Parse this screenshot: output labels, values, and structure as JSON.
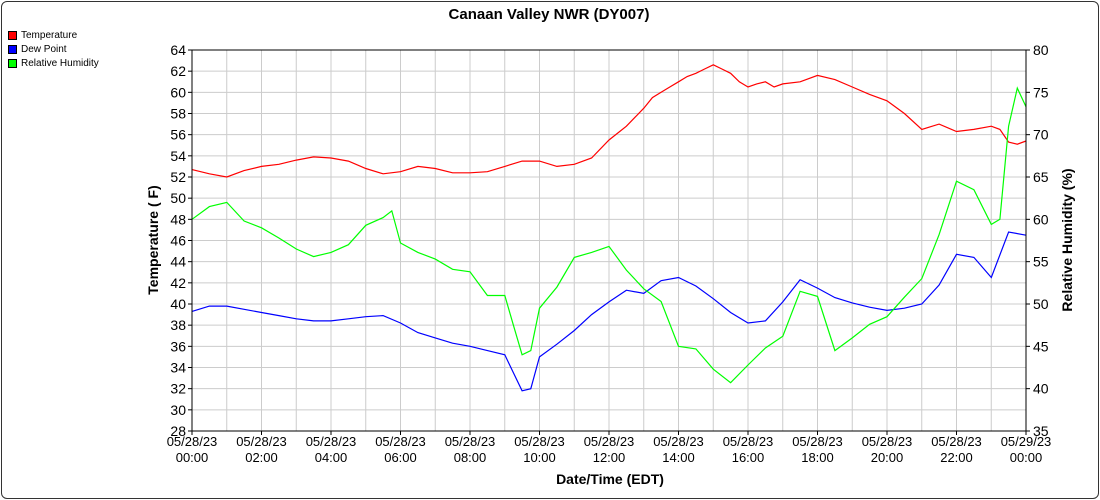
{
  "chart_data": {
    "type": "line",
    "title": "Canaan Valley NWR (DY007)",
    "xlabel": "Date/Time (EDT)",
    "ylabel": "Temperature ( F)",
    "y2label": "Relative Humidity (%)",
    "xlim": [
      0,
      24
    ],
    "ylim": [
      28,
      64
    ],
    "y2lim": [
      35,
      80
    ],
    "yticks": [
      "28",
      "30",
      "32",
      "34",
      "36",
      "38",
      "40",
      "42",
      "44",
      "46",
      "48",
      "50",
      "52",
      "54",
      "56",
      "58",
      "60",
      "62",
      "64"
    ],
    "y2ticks": [
      "35",
      "40",
      "45",
      "50",
      "55",
      "60",
      "65",
      "70",
      "75",
      "80"
    ],
    "xticks": [
      {
        "date": "05/28/23",
        "time": "00:00"
      },
      {
        "date": "05/28/23",
        "time": "02:00"
      },
      {
        "date": "05/28/23",
        "time": "04:00"
      },
      {
        "date": "05/28/23",
        "time": "06:00"
      },
      {
        "date": "05/28/23",
        "time": "08:00"
      },
      {
        "date": "05/28/23",
        "time": "10:00"
      },
      {
        "date": "05/28/23",
        "time": "12:00"
      },
      {
        "date": "05/28/23",
        "time": "14:00"
      },
      {
        "date": "05/28/23",
        "time": "16:00"
      },
      {
        "date": "05/28/23",
        "time": "18:00"
      },
      {
        "date": "05/28/23",
        "time": "20:00"
      },
      {
        "date": "05/28/23",
        "time": "22:00"
      },
      {
        "date": "05/29/23",
        "time": "00:00"
      }
    ],
    "grid": true,
    "legend_position": "top-left",
    "series": [
      {
        "name": "Temperature",
        "color": "#ff0000",
        "axis": "left",
        "x": [
          0,
          0.5,
          1,
          1.5,
          2,
          2.5,
          3,
          3.5,
          4,
          4.5,
          5,
          5.5,
          6,
          6.5,
          7,
          7.5,
          8,
          8.5,
          9,
          9.5,
          10,
          10.5,
          11,
          11.5,
          12,
          12.5,
          13,
          13.25,
          13.5,
          13.75,
          14,
          14.25,
          14.5,
          14.75,
          15,
          15.25,
          15.5,
          15.75,
          16,
          16.25,
          16.5,
          16.75,
          17,
          17.5,
          18,
          18.5,
          19,
          19.5,
          20,
          20.5,
          21,
          21.5,
          22,
          22.5,
          23,
          23.25,
          23.5,
          23.75,
          24
        ],
        "y": [
          52.7,
          52.3,
          52,
          52.6,
          53,
          53.2,
          53.6,
          53.9,
          53.8,
          53.5,
          52.8,
          52.3,
          52.5,
          53,
          52.8,
          52.4,
          52.4,
          52.5,
          53,
          53.5,
          53.5,
          53,
          53.2,
          53.8,
          55.5,
          56.8,
          58.5,
          59.5,
          60,
          60.5,
          61,
          61.5,
          61.8,
          62.2,
          62.6,
          62.2,
          61.8,
          61,
          60.5,
          60.8,
          61,
          60.5,
          60.8,
          61,
          61.6,
          61.2,
          60.5,
          59.8,
          59.2,
          58,
          56.5,
          57,
          56.3,
          56.5,
          56.8,
          56.5,
          55.3,
          55.1,
          55.4
        ]
      },
      {
        "name": "Dew Point",
        "color": "#0000ff",
        "axis": "left",
        "x": [
          0,
          0.5,
          1,
          1.5,
          2,
          2.5,
          3,
          3.5,
          4,
          4.5,
          5,
          5.5,
          6,
          6.5,
          7,
          7.5,
          8,
          8.5,
          9,
          9.25,
          9.5,
          9.75,
          10,
          10.5,
          11,
          11.5,
          12,
          12.5,
          13,
          13.5,
          14,
          14.5,
          15,
          15.5,
          16,
          16.5,
          17,
          17.5,
          18,
          18.5,
          19,
          19.5,
          20,
          20.5,
          21,
          21.5,
          22,
          22.5,
          23,
          23.5,
          24
        ],
        "y": [
          39.3,
          39.8,
          39.8,
          39.5,
          39.2,
          38.9,
          38.6,
          38.4,
          38.4,
          38.6,
          38.8,
          38.9,
          38.2,
          37.3,
          36.8,
          36.3,
          36,
          35.6,
          35.2,
          33.5,
          31.8,
          32,
          35,
          36.2,
          37.5,
          39,
          40.2,
          41.3,
          41,
          42.2,
          42.5,
          41.7,
          40.5,
          39.2,
          38.2,
          38.4,
          40.2,
          42.3,
          41.5,
          40.6,
          40.1,
          39.7,
          39.4,
          39.6,
          40,
          41.8,
          44.7,
          44.4,
          42.5,
          46.8,
          46.5
        ]
      },
      {
        "name": "Relative Humidity",
        "color": "#00ff00",
        "axis": "right",
        "x": [
          0,
          0.5,
          1,
          1.5,
          2,
          2.5,
          3,
          3.5,
          4,
          4.5,
          5,
          5.5,
          5.75,
          6,
          6.5,
          7,
          7.5,
          8,
          8.5,
          9,
          9.25,
          9.5,
          9.75,
          10,
          10.5,
          11,
          11.5,
          12,
          12.5,
          13,
          13.5,
          14,
          14.5,
          15,
          15.5,
          16,
          16.5,
          17,
          17.5,
          18,
          18.5,
          19,
          19.5,
          20,
          20.5,
          21,
          21.5,
          22,
          22.5,
          23,
          23.25,
          23.5,
          23.75,
          24
        ],
        "y": [
          60,
          61.5,
          62,
          59.8,
          59,
          57.8,
          56.5,
          55.6,
          56.1,
          57,
          59.3,
          60.2,
          61,
          57.2,
          56.1,
          55.3,
          54.1,
          53.8,
          51,
          51,
          47.5,
          44,
          44.5,
          49.5,
          52,
          55.5,
          56.1,
          56.8,
          54,
          51.8,
          50.3,
          45,
          44.7,
          42.3,
          40.7,
          42.8,
          44.8,
          46.2,
          51.5,
          50.9,
          44.5,
          46,
          47.6,
          48.5,
          50.8,
          53,
          58.2,
          64.5,
          63.5,
          59.4,
          60,
          71,
          75.5,
          73.3
        ]
      }
    ]
  }
}
